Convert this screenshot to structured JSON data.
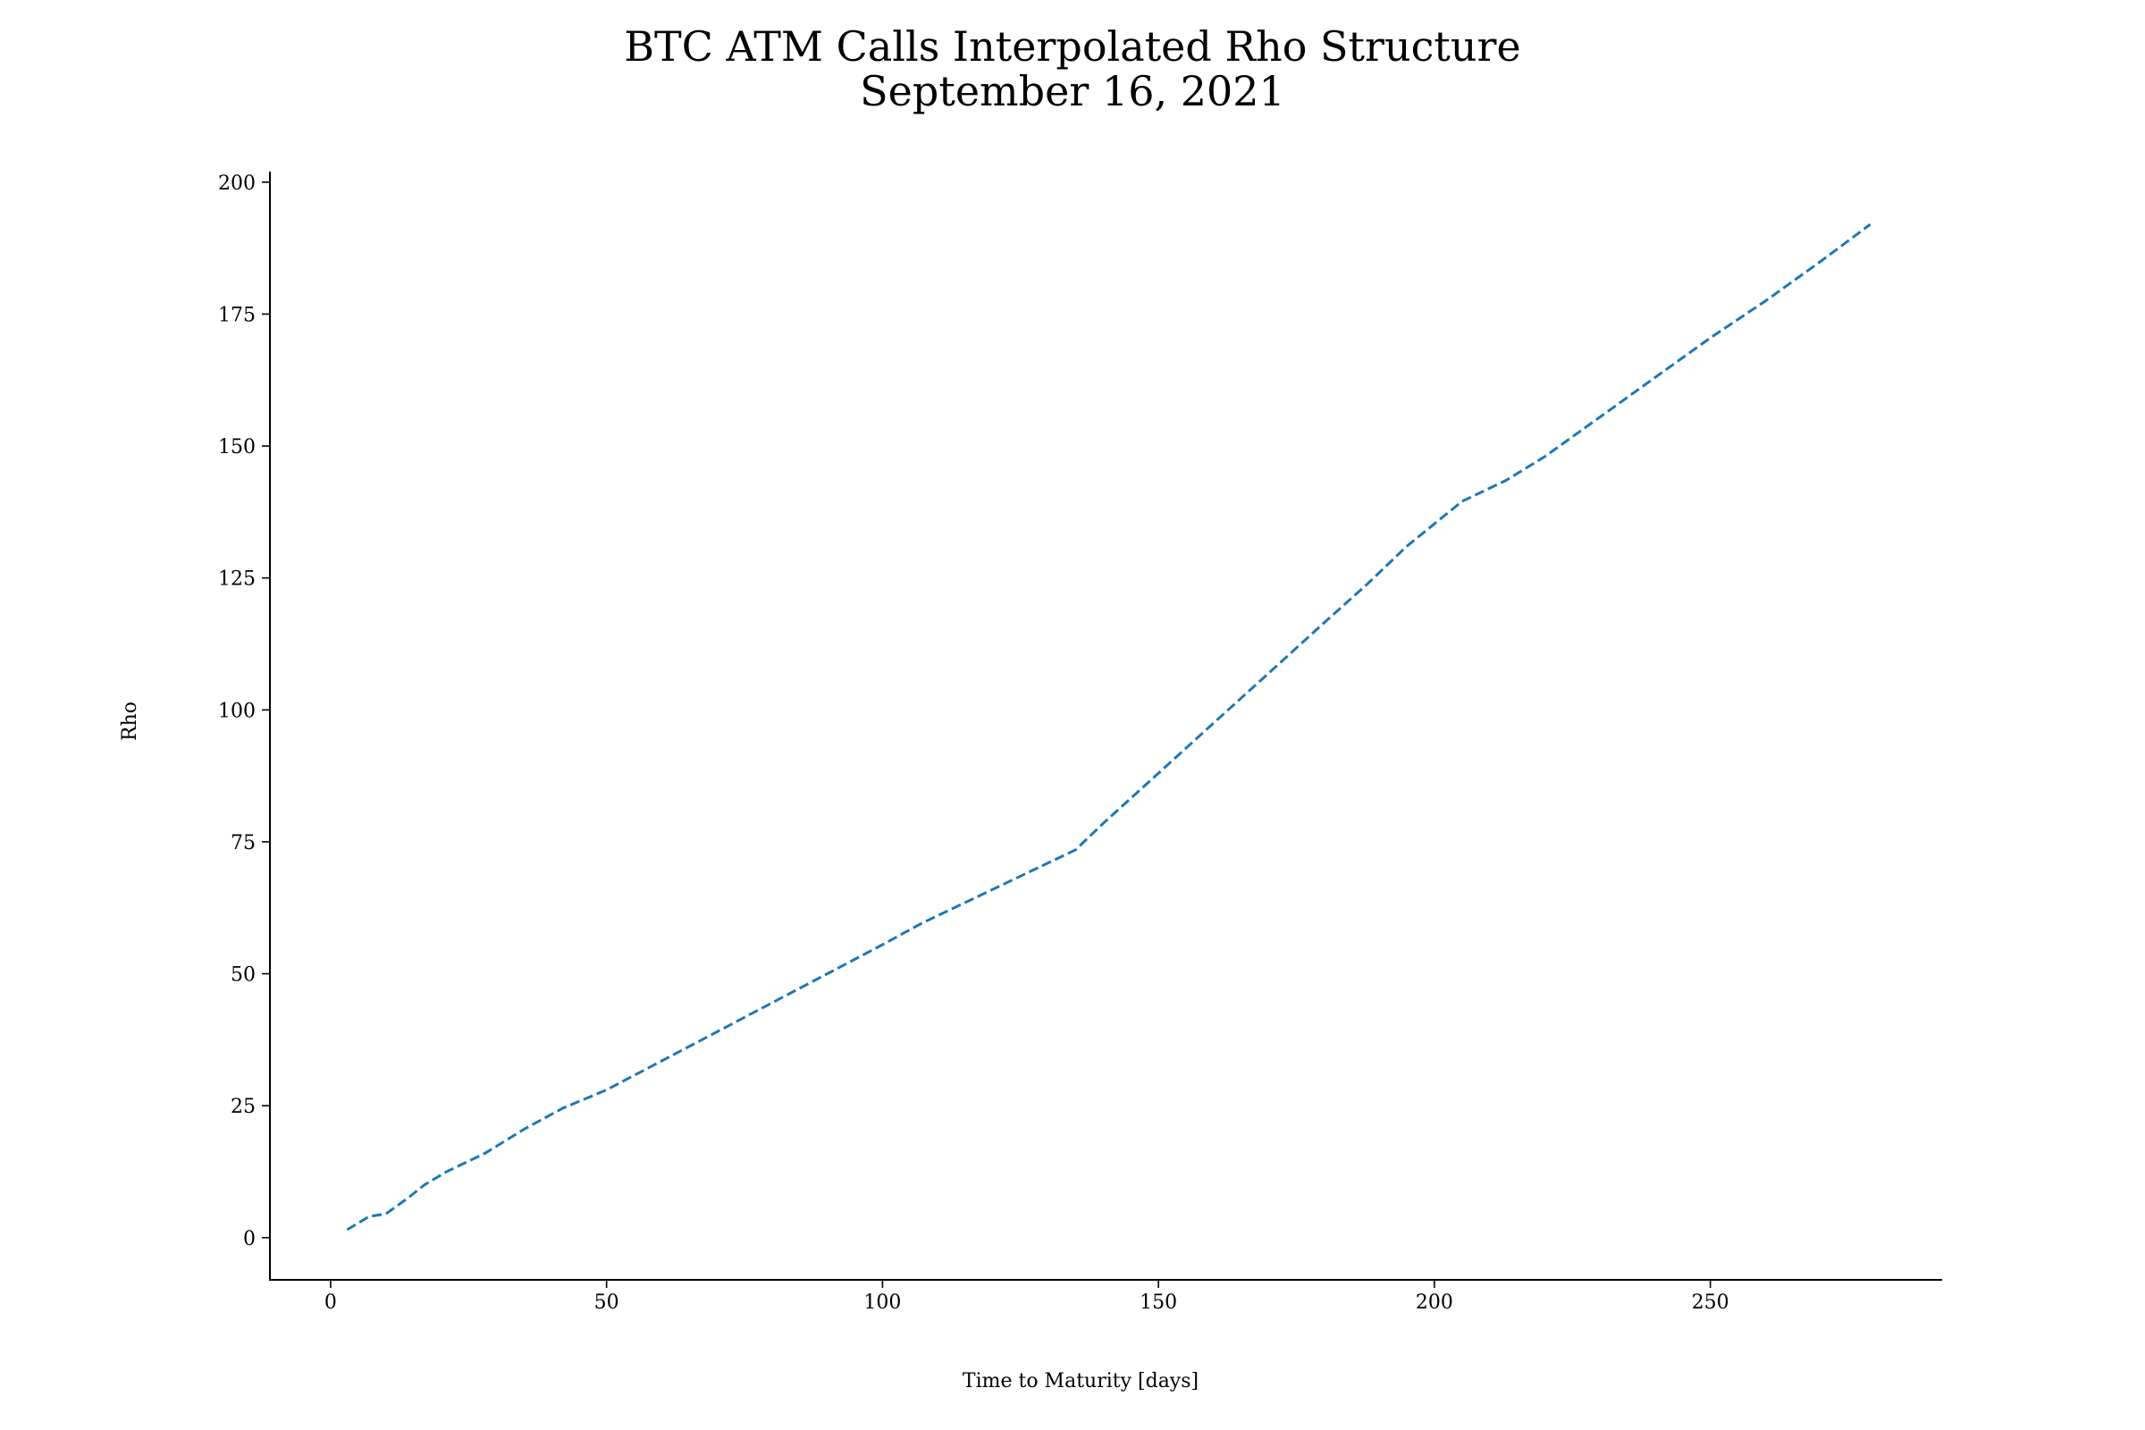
{
  "chart_data": {
    "type": "line",
    "title": "BTC ATM Calls Interpolated Rho Structure",
    "subtitle": "September 16, 2021",
    "xlabel": "Time to Maturity [days]",
    "ylabel": "Rho",
    "xlim": [
      -11,
      292
    ],
    "ylim": [
      -8,
      202
    ],
    "xticks": [
      0,
      50,
      100,
      150,
      200,
      250
    ],
    "yticks": [
      0,
      25,
      50,
      75,
      100,
      125,
      150,
      175,
      200
    ],
    "grid": false,
    "line_style": "dashed",
    "series": [
      {
        "color": "#1f77b4",
        "x": [
          3,
          7,
          10,
          14,
          17,
          21,
          28,
          35,
          42,
          50,
          60,
          70,
          80,
          90,
          100,
          107,
          115,
          125,
          135,
          140,
          150,
          160,
          170,
          180,
          188,
          195,
          205,
          213,
          220,
          230,
          240,
          250,
          260,
          270,
          279
        ],
        "y": [
          1.5,
          4,
          4.5,
          7.5,
          10,
          12.5,
          16,
          20.5,
          24.5,
          28,
          33.5,
          39,
          44.5,
          50,
          55.5,
          59.5,
          63.5,
          68.5,
          73.5,
          78.5,
          88,
          97.5,
          107,
          116.5,
          124,
          131,
          139.5,
          143.5,
          148,
          155.5,
          163,
          170.5,
          177.5,
          185,
          192
        ]
      }
    ]
  }
}
